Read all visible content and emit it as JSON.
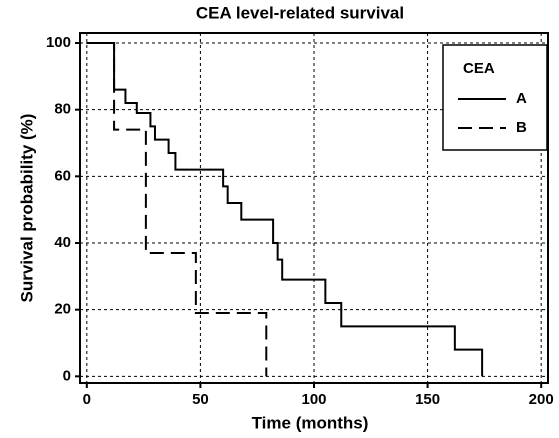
{
  "chart_data": {
    "type": "line",
    "title": "CEA level-related survival",
    "x_label": "Time (months)",
    "y_label": "Survival probability (%)",
    "xlim": [
      -3,
      203
    ],
    "ylim": [
      -2,
      103
    ],
    "xticks": [
      0,
      50,
      100,
      150,
      200
    ],
    "yticks": [
      0,
      20,
      40,
      60,
      80,
      100
    ],
    "grid": true,
    "legend_title": "CEA",
    "legend_position": "upper right",
    "series": [
      {
        "name": "A",
        "color": "#000000",
        "dash": "solid",
        "x": [
          0,
          12,
          12,
          17,
          17,
          22,
          22,
          28,
          28,
          30,
          30,
          36,
          36,
          39,
          39,
          60,
          60,
          62,
          62,
          68,
          68,
          82,
          82,
          84,
          84,
          86,
          86,
          105,
          105,
          112,
          112,
          162,
          162,
          174,
          174
        ],
        "values": [
          100,
          100,
          86,
          86,
          82,
          82,
          79,
          79,
          75,
          75,
          71,
          71,
          67,
          67,
          62,
          62,
          57,
          57,
          52,
          52,
          47,
          47,
          40,
          40,
          35,
          35,
          29,
          29,
          22,
          22,
          15,
          15,
          8,
          8,
          0
        ]
      },
      {
        "name": "B",
        "color": "#000000",
        "dash": "dashed",
        "x": [
          0,
          12,
          12,
          26,
          26,
          48,
          48,
          79,
          79
        ],
        "values": [
          100,
          100,
          74,
          74,
          37,
          37,
          19,
          19,
          0
        ]
      }
    ]
  }
}
